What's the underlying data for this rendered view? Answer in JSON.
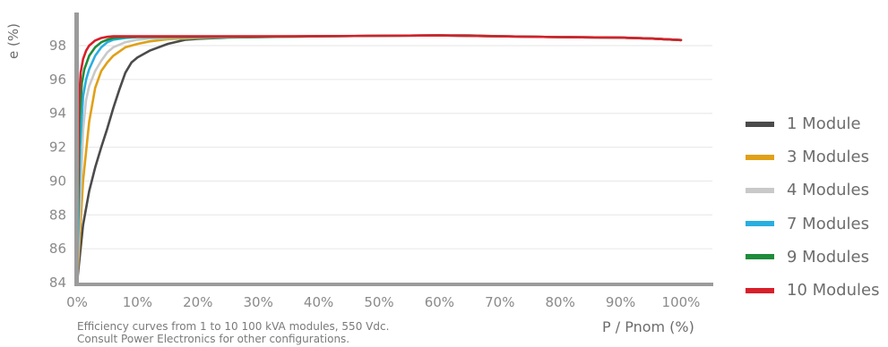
{
  "chart_data": {
    "type": "line",
    "ylabel": "e (%)",
    "xlabel": "P / Pnom (%)",
    "xlim": [
      0,
      100
    ],
    "ylim": [
      84,
      99.8
    ],
    "xticks": [
      "0%",
      "10%",
      "20%",
      "30%",
      "40%",
      "50%",
      "60%",
      "70%",
      "80%",
      "90%",
      "100%"
    ],
    "xtick_values": [
      0,
      10,
      20,
      30,
      40,
      50,
      60,
      70,
      80,
      90,
      100
    ],
    "yticks": [
      "84",
      "86",
      "88",
      "90",
      "92",
      "94",
      "96",
      "98"
    ],
    "ytick_values": [
      84,
      86,
      88,
      90,
      92,
      94,
      96,
      98
    ],
    "grid": "horizontal",
    "legend_position": "right",
    "series": [
      {
        "name": "1 Module",
        "color": "#4b4b4b",
        "x": [
          0,
          1,
          2,
          3,
          4,
          5,
          6,
          7,
          8,
          9,
          10,
          12,
          15,
          18,
          20,
          25,
          30,
          40,
          50,
          60,
          65,
          70,
          80,
          90,
          95,
          100
        ],
        "y": [
          84.0,
          87.4,
          89.4,
          90.8,
          92.0,
          93.1,
          94.3,
          95.4,
          96.4,
          97.0,
          97.3,
          97.7,
          98.1,
          98.35,
          98.4,
          98.48,
          98.5,
          98.55,
          98.58,
          98.6,
          98.6,
          98.55,
          98.5,
          98.47,
          98.42,
          98.33
        ]
      },
      {
        "name": "3 Modules",
        "color": "#e0a018",
        "x": [
          0,
          1,
          2,
          3,
          4,
          5,
          6,
          8,
          10,
          12,
          15,
          20,
          25,
          30,
          40,
          50,
          60,
          70,
          80,
          90,
          95,
          100
        ],
        "y": [
          84.0,
          90.0,
          93.5,
          95.5,
          96.5,
          97.0,
          97.4,
          97.9,
          98.1,
          98.25,
          98.38,
          98.45,
          98.5,
          98.52,
          98.55,
          98.58,
          98.6,
          98.55,
          98.5,
          98.47,
          98.42,
          98.33
        ]
      },
      {
        "name": "4 Modules",
        "color": "#c9c9c9",
        "x": [
          0,
          1,
          1.5,
          2,
          3,
          4,
          5,
          6,
          8,
          10,
          12,
          15,
          20,
          30,
          40,
          50,
          60,
          70,
          80,
          90,
          95,
          100
        ],
        "y": [
          84.0,
          93.0,
          94.8,
          95.6,
          96.5,
          97.1,
          97.6,
          97.9,
          98.2,
          98.35,
          98.42,
          98.45,
          98.48,
          98.52,
          98.55,
          98.58,
          98.6,
          98.55,
          98.5,
          98.47,
          98.42,
          98.33
        ]
      },
      {
        "name": "7 Modules",
        "color": "#29aee0",
        "x": [
          0,
          0.5,
          1,
          1.5,
          2,
          3,
          4,
          5,
          6,
          8,
          10,
          12,
          15,
          20,
          30,
          40,
          50,
          60,
          70,
          80,
          90,
          95,
          100
        ],
        "y": [
          84.0,
          92.0,
          95.0,
          96.0,
          96.6,
          97.4,
          97.9,
          98.2,
          98.35,
          98.45,
          98.5,
          98.5,
          98.5,
          98.5,
          98.52,
          98.55,
          98.58,
          98.6,
          98.55,
          98.5,
          98.47,
          98.42,
          98.33
        ]
      },
      {
        "name": "9 Modules",
        "color": "#1e8c3a",
        "x": [
          0,
          0.4,
          0.8,
          1.2,
          2,
          3,
          4,
          5,
          6,
          8,
          10,
          15,
          20,
          30,
          40,
          50,
          60,
          70,
          80,
          90,
          95,
          100
        ],
        "y": [
          84.0,
          93.5,
          95.8,
          96.6,
          97.4,
          97.9,
          98.2,
          98.35,
          98.45,
          98.5,
          98.52,
          98.52,
          98.52,
          98.52,
          98.55,
          98.58,
          98.6,
          98.55,
          98.5,
          98.47,
          98.42,
          98.33
        ]
      },
      {
        "name": "10 Modules",
        "color": "#d81f2a",
        "x": [
          0,
          0.3,
          0.6,
          1,
          1.5,
          2,
          3,
          4,
          5,
          6,
          8,
          10,
          15,
          20,
          30,
          40,
          50,
          60,
          70,
          80,
          90,
          95,
          100
        ],
        "y": [
          84.0,
          94.5,
          96.4,
          97.2,
          97.7,
          98.0,
          98.3,
          98.45,
          98.52,
          98.55,
          98.55,
          98.55,
          98.55,
          98.55,
          98.55,
          98.56,
          98.58,
          98.6,
          98.55,
          98.5,
          98.47,
          98.42,
          98.33
        ]
      }
    ]
  },
  "caption": {
    "line1": "Efficiency curves from 1 to 10  100 kVA modules, 550 Vdc.",
    "line2": "Consult Power Electronics for other configurations."
  }
}
